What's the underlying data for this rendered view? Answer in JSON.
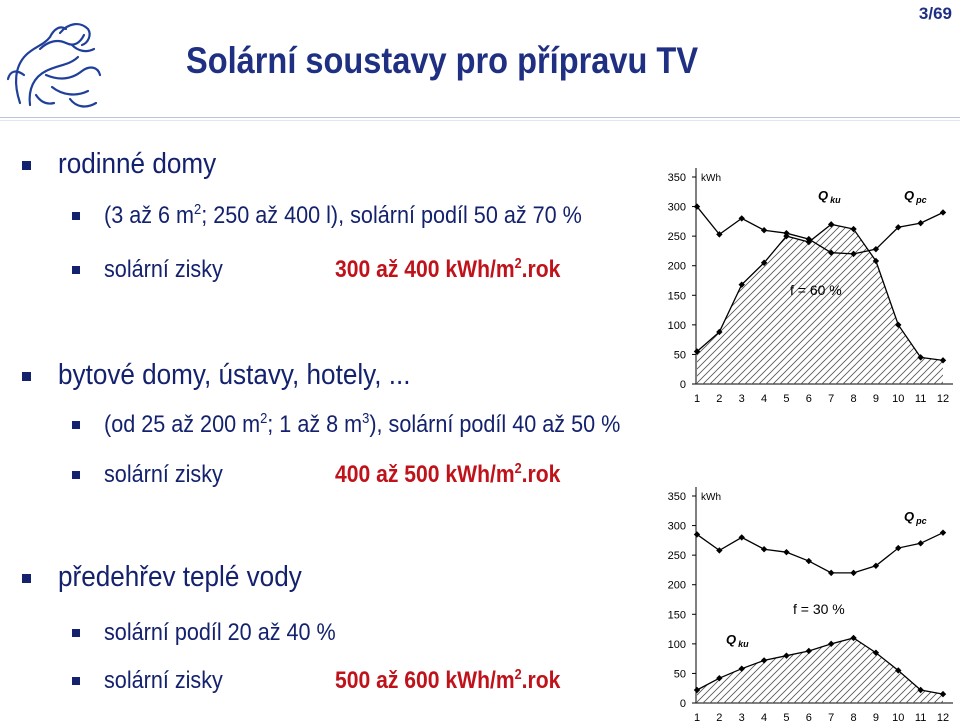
{
  "header": {
    "title": "Solární soustavy pro přípravu TV",
    "page_number": "3/69"
  },
  "logo": {
    "name": "lion-logo-icon",
    "color": "#1f3f9a"
  },
  "sections": [
    {
      "heading": "rodinné domy",
      "line1": {
        "pre": "(3 až 6 m",
        "sup": "2",
        "post": "; 250 až 400 l), solární podíl 50 až 70 %"
      },
      "line2": {
        "label": "solární zisky",
        "value_pre": "300 až 400 kWh/m",
        "value_sup": "2",
        "value_post": ".rok"
      }
    },
    {
      "heading": "bytové domy, ústavy, hotely, ...",
      "line1": {
        "pre": "(od 25 až 200 m",
        "sup": "2",
        "mid": "; 1 až 8 m",
        "sup2": "3",
        "post": "), solární podíl 40 až 50 %"
      },
      "line2": {
        "label": "solární zisky",
        "value_pre": "400 až 500 kWh/m",
        "value_sup": "2",
        "value_post": ".rok"
      }
    },
    {
      "heading": "předehřev teplé vody",
      "line1": {
        "text": "solární podíl 20 až 40 %"
      },
      "line2": {
        "label": "solární zisky",
        "value_pre": "500 až 600 kWh/m",
        "value_sup": "2",
        "value_post": ".rok"
      }
    }
  ],
  "chart_data": [
    {
      "type": "line",
      "title": "",
      "unit_label": "kWh",
      "x": [
        1,
        2,
        3,
        4,
        5,
        6,
        7,
        8,
        9,
        10,
        11,
        12
      ],
      "ylim": [
        0,
        350
      ],
      "yticks": [
        0,
        50,
        100,
        150,
        200,
        250,
        300,
        350
      ],
      "series": [
        {
          "name": "Q pc",
          "values": [
            300,
            253,
            280,
            260,
            255,
            245,
            222,
            220,
            228,
            265,
            272,
            290
          ]
        },
        {
          "name": "Q ku",
          "values": [
            55,
            88,
            168,
            205,
            250,
            240,
            270,
            262,
            208,
            100,
            45,
            40
          ]
        }
      ],
      "annotation": "f = 60 %",
      "grid": false
    },
    {
      "type": "line",
      "title": "",
      "unit_label": "kWh",
      "x": [
        1,
        2,
        3,
        4,
        5,
        6,
        7,
        8,
        9,
        10,
        11,
        12
      ],
      "ylim": [
        0,
        350
      ],
      "yticks": [
        0,
        50,
        100,
        150,
        200,
        250,
        300,
        350
      ],
      "series": [
        {
          "name": "Q pc",
          "values": [
            285,
            258,
            280,
            260,
            255,
            240,
            220,
            220,
            232,
            262,
            270,
            288
          ]
        },
        {
          "name": "Q ku",
          "values": [
            22,
            42,
            58,
            72,
            80,
            88,
            100,
            110,
            85,
            55,
            22,
            15
          ]
        }
      ],
      "annotation": "f = 30 %",
      "grid": false
    }
  ]
}
